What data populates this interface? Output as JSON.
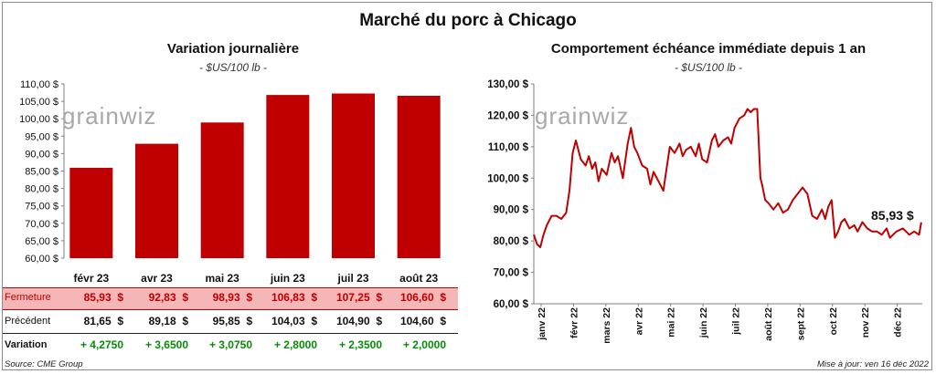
{
  "main_title": "Marché du porc à Chicago",
  "left_panel": {
    "title": "Variation  journalière",
    "unit": "- $US/100 lb -",
    "watermark": "grainwiz"
  },
  "right_panel": {
    "title": "Comportement  échéance immédiate depuis 1 an",
    "unit": "- $US/100 lb -",
    "watermark": "grainwiz",
    "last_value_label": "85,93 $"
  },
  "table": {
    "rows": [
      {
        "label": "Fermeture",
        "values": [
          "85,93  $",
          "92,83  $",
          "98,93  $",
          "106,83  $",
          "107,25  $",
          "106,60  $"
        ]
      },
      {
        "label": "Précédent",
        "values": [
          "81,65  $",
          "89,18  $",
          "95,85  $",
          "104,03  $",
          "104,90  $",
          "104,60  $"
        ]
      },
      {
        "label": "Variation",
        "values": [
          "+ 4,2750",
          "+ 3,6500",
          "+ 3,0750",
          "+ 2,8000",
          "+ 2,3500",
          "+ 2,0000"
        ]
      }
    ]
  },
  "footer": {
    "source": "Source: CME Group",
    "updated": "Mise à jour: ven 16 déc 2022"
  },
  "colors": {
    "bar": "#c00000",
    "line": "#c00000",
    "table_highlight": "#f4b6b6",
    "variation_text": "#0a8a0a"
  },
  "chart_data": [
    {
      "type": "bar",
      "title": "Variation  journalière",
      "categories": [
        "févr 23",
        "avr 23",
        "mai 23",
        "juin 23",
        "juil 23",
        "août 23"
      ],
      "values": [
        85.93,
        92.83,
        98.93,
        106.83,
        107.25,
        106.6
      ],
      "ylim": [
        60,
        110
      ],
      "yticks": [
        "60,00 $",
        "65,00 $",
        "70,00 $",
        "75,00 $",
        "80,00 $",
        "85,00 $",
        "90,00 $",
        "95,00 $",
        "100,00 $",
        "105,00 $",
        "110,00 $"
      ],
      "ytick_values": [
        60,
        65,
        70,
        75,
        80,
        85,
        90,
        95,
        100,
        105,
        110
      ],
      "grid": false,
      "legend": "none"
    },
    {
      "type": "line",
      "title": "Comportement  échéance immédiate depuis 1 an",
      "ylim": [
        60,
        130
      ],
      "yticks": [
        "60,00 $",
        "70,00 $",
        "80,00 $",
        "90,00 $",
        "100,00 $",
        "110,00 $",
        "120,00 $",
        "130,00 $"
      ],
      "ytick_values": [
        60,
        70,
        80,
        90,
        100,
        110,
        120,
        130
      ],
      "xlim": [
        0,
        12
      ],
      "xticks": [
        "janv 22",
        "févr 22",
        "mars 22",
        "avr 22",
        "mai 22",
        "juin 22",
        "juil 22",
        "août 22",
        "sept 22",
        "oct 22",
        "nov 22",
        "déc 22"
      ],
      "xtick_values": [
        0,
        1,
        2,
        3,
        4,
        5,
        6,
        7,
        8,
        9,
        10,
        11
      ],
      "grid": false,
      "legend": "none",
      "x": [
        0,
        0.1,
        0.2,
        0.3,
        0.4,
        0.55,
        0.7,
        0.85,
        1.0,
        1.1,
        1.2,
        1.3,
        1.45,
        1.6,
        1.7,
        1.8,
        1.9,
        2.0,
        2.1,
        2.25,
        2.4,
        2.5,
        2.6,
        2.75,
        2.9,
        3.0,
        3.1,
        3.2,
        3.35,
        3.5,
        3.6,
        3.7,
        3.85,
        4.0,
        4.1,
        4.2,
        4.35,
        4.5,
        4.6,
        4.7,
        4.85,
        5.0,
        5.1,
        5.2,
        5.35,
        5.5,
        5.6,
        5.7,
        5.85,
        6.0,
        6.1,
        6.2,
        6.35,
        6.5,
        6.6,
        6.7,
        6.8,
        6.9,
        7.0,
        7.05,
        7.15,
        7.25,
        7.4,
        7.55,
        7.7,
        7.85,
        8.0,
        8.15,
        8.3,
        8.45,
        8.6,
        8.75,
        8.9,
        9.0,
        9.1,
        9.2,
        9.3,
        9.4,
        9.5,
        9.6,
        9.75,
        9.9,
        10.0,
        10.15,
        10.3,
        10.45,
        10.6,
        10.75,
        10.9,
        11.0,
        11.2,
        11.4,
        11.6,
        11.75,
        11.9,
        11.97
      ],
      "y": [
        82,
        79,
        78,
        82,
        85,
        88,
        88,
        87,
        89,
        96,
        108,
        112,
        106,
        104,
        107,
        103,
        105,
        99,
        103,
        101,
        108,
        105,
        107,
        100,
        111,
        116,
        110,
        108,
        104,
        103,
        98,
        102,
        99,
        96,
        103,
        110,
        108,
        111,
        107,
        109,
        110,
        107,
        111,
        106,
        105,
        112,
        114,
        110,
        112,
        113,
        111,
        116,
        119,
        120,
        122,
        121,
        122,
        122,
        100,
        98,
        93,
        92,
        90,
        92,
        89,
        90,
        93,
        95,
        97,
        95,
        88,
        87,
        90,
        87,
        91,
        93,
        81,
        83,
        86,
        87,
        84,
        85,
        83,
        86,
        84,
        83,
        83,
        82,
        84,
        81,
        83,
        84,
        82,
        83,
        82,
        85.93
      ]
    }
  ]
}
